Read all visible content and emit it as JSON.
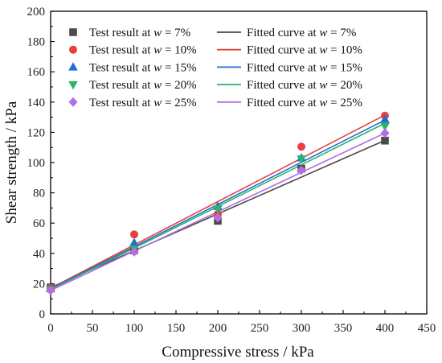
{
  "chart_data": {
    "type": "scatter",
    "xlabel": "Compressive stress / kPa",
    "ylabel": "Shear strength / kPa",
    "xlim": [
      0,
      450
    ],
    "ylim": [
      0,
      200
    ],
    "xticks": [
      0,
      50,
      100,
      150,
      200,
      250,
      300,
      350,
      400,
      450
    ],
    "yticks": [
      0,
      20,
      40,
      60,
      80,
      100,
      120,
      140,
      160,
      180,
      200
    ],
    "grid": false,
    "legend_position": "top-left",
    "x": [
      0,
      100,
      200,
      300,
      400
    ],
    "series": [
      {
        "id": "w7",
        "name": "Test result at w = 7%",
        "fit_name": "Fitted curve at w = 7%",
        "name_parts": [
          "Test result at ",
          "w",
          " = 7%"
        ],
        "fit_name_parts": [
          "Fitted curve at ",
          "w",
          " = 7%"
        ],
        "marker": "square",
        "color": "#4a4a4a",
        "values": [
          17.5,
          42,
          61.5,
          96,
          114.5
        ],
        "fit": {
          "intercept": 17.5,
          "slope": 0.243
        }
      },
      {
        "id": "w10",
        "name": "Test result at w = 10%",
        "fit_name": "Fitted curve at w = 10%",
        "name_parts": [
          "Test result at ",
          "w",
          " = 10%"
        ],
        "fit_name_parts": [
          "Fitted curve at ",
          "w",
          " = 10%"
        ],
        "marker": "circle",
        "color": "#e8403f",
        "values": [
          17,
          52.5,
          66,
          110.5,
          131
        ],
        "fit": {
          "intercept": 17,
          "slope": 0.286
        }
      },
      {
        "id": "w15",
        "name": "Test result at w = 15%",
        "fit_name": "Fitted curve at w = 15%",
        "name_parts": [
          "Test result at ",
          "w",
          " = 15%"
        ],
        "fit_name_parts": [
          "Fitted curve at ",
          "w",
          " = 15%"
        ],
        "marker": "triangle-up",
        "color": "#1f6fd1",
        "values": [
          16.5,
          47,
          71,
          103,
          128.5
        ],
        "fit": {
          "intercept": 16.5,
          "slope": 0.279
        }
      },
      {
        "id": "w20",
        "name": "Test result at w = 20%",
        "fit_name": "Fitted curve at w = 20%",
        "name_parts": [
          "Test result at ",
          "w",
          " = 20%"
        ],
        "fit_name_parts": [
          "Fitted curve at ",
          "w",
          " = 20%"
        ],
        "marker": "triangle-down",
        "color": "#2db36a",
        "values": [
          16,
          43,
          69.5,
          102.5,
          124
        ],
        "fit": {
          "intercept": 16,
          "slope": 0.275
        }
      },
      {
        "id": "w25",
        "name": "Test result at w = 25%",
        "fit_name": "Fitted curve at w = 25%",
        "name_parts": [
          "Test result at ",
          "w",
          " = 25%"
        ],
        "fit_name_parts": [
          "Fitted curve at ",
          "w",
          " = 25%"
        ],
        "marker": "diamond",
        "color": "#b36fe0",
        "values": [
          15.5,
          41,
          63.5,
          95,
          119.5
        ],
        "fit": {
          "intercept": 15.5,
          "slope": 0.26
        }
      }
    ]
  }
}
